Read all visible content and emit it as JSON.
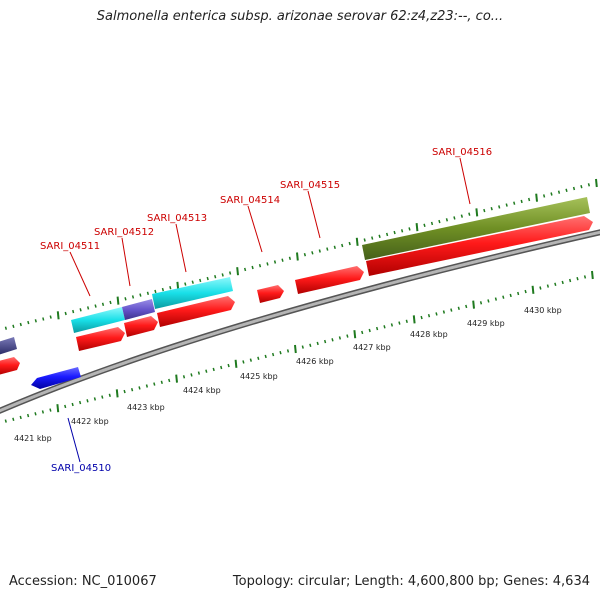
{
  "title": "Salmonella enterica subsp. arizonae serovar 62:z4,z23:--, co...",
  "footer": {
    "accession": "Accession: NC_010067",
    "stats": "Topology: circular; Length: 4,600,800 bp; Genes: 4,634"
  },
  "colors": {
    "forward_gene": "#ff1a1a",
    "reverse_gene": "#1a1aff",
    "cog_cyan": "#19e0e8",
    "cog_purple": "#6655cc",
    "cog_olive": "#6f8f24",
    "backbone": "#8c8c8c",
    "tick_green": "#1f7a1f",
    "label_red": "#cc0000",
    "label_blue": "#0000aa"
  },
  "genes": [
    {
      "name": "SARI_04510",
      "strand": "reverse"
    },
    {
      "name": "SARI_04511",
      "strand": "forward"
    },
    {
      "name": "SARI_04512",
      "strand": "forward"
    },
    {
      "name": "SARI_04513",
      "strand": "forward"
    },
    {
      "name": "SARI_04514",
      "strand": "forward"
    },
    {
      "name": "SARI_04515",
      "strand": "forward"
    },
    {
      "name": "SARI_04516",
      "strand": "forward"
    }
  ],
  "scale_labels": [
    "4421 kbp",
    "4422 kbp",
    "4423 kbp",
    "4424 kbp",
    "4425 kbp",
    "4426 kbp",
    "4427 kbp",
    "4428 kbp",
    "4429 kbp",
    "4430 kbp"
  ]
}
